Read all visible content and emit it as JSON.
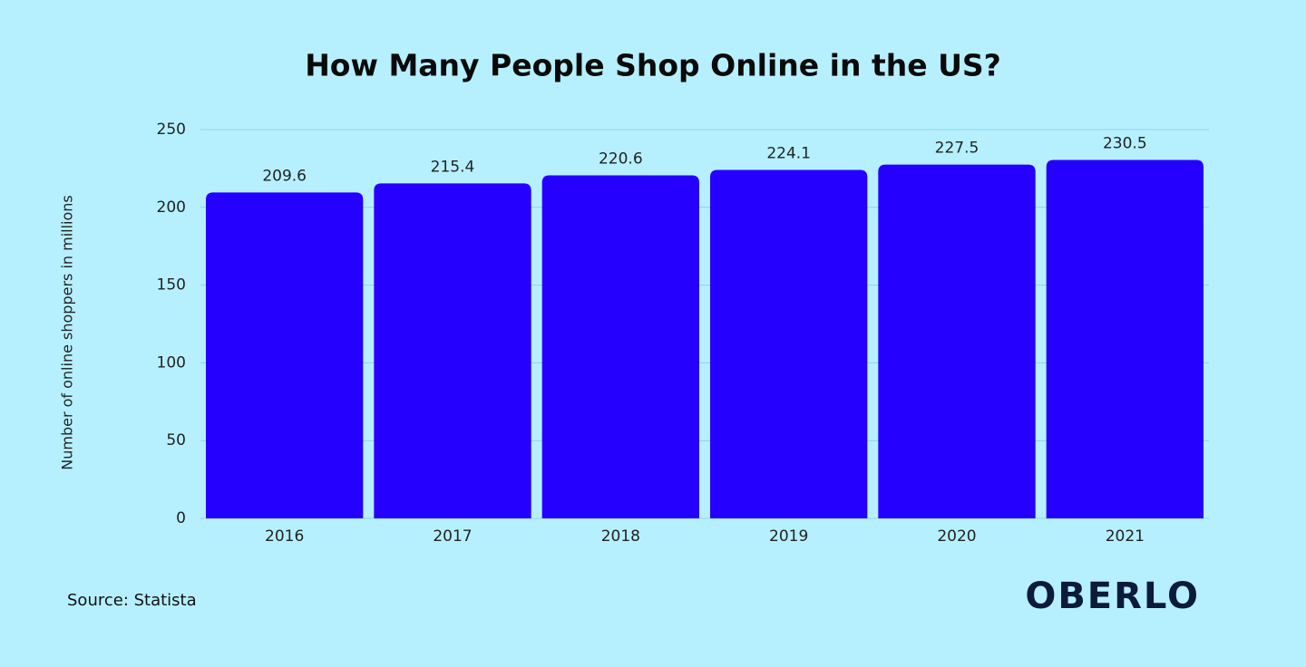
{
  "chart_data": {
    "type": "bar",
    "title": "How Many People Shop Online in the US?",
    "y_label": "Number of online shoppers in millions",
    "categories": [
      "2016",
      "2017",
      "2018",
      "2019",
      "2020",
      "2021"
    ],
    "values": [
      209.6,
      215.4,
      220.6,
      224.1,
      227.5,
      230.5
    ],
    "color": "#2600ff",
    "ylim": [
      0,
      250
    ],
    "yticks": [
      0,
      50,
      100,
      150,
      200,
      250
    ],
    "grid": true
  },
  "source": "Source: Statista",
  "logo": "OBERLO"
}
